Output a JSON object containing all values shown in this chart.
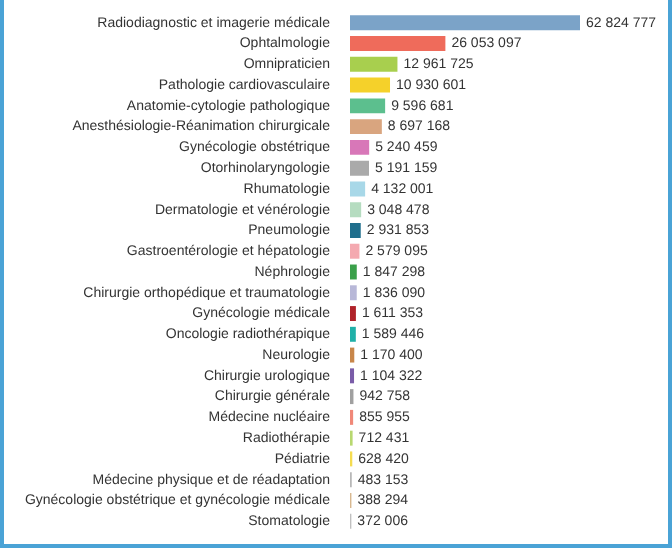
{
  "chart_data": {
    "type": "bar",
    "orientation": "horizontal",
    "categories": [
      "Radiodiagnostic et imagerie médicale",
      "Ophtalmologie",
      "Omnipraticien",
      "Pathologie cardiovasculaire",
      "Anatomie-cytologie pathologique",
      "Anesthésiologie-Réanimation chirurgicale",
      "Gynécologie obstétrique",
      "Otorhinolaryngologie",
      "Rhumatologie",
      "Dermatologie et vénérologie",
      "Pneumologie",
      "Gastroentérologie et hépatologie",
      "Néphrologie",
      "Chirurgie orthopédique et traumatologie",
      "Gynécologie médicale",
      "Oncologie radiothérapique",
      "Neurologie",
      "Chirurgie urologique",
      "Chirurgie générale",
      "Médecine nucléaire",
      "Radiothérapie",
      "Pédiatrie",
      "Médecine physique et de réadaptation",
      "Gynécologie obstétrique et gynécologie médicale",
      "Stomatologie"
    ],
    "values": [
      62824777,
      26053097,
      12961725,
      10930601,
      9596681,
      8697168,
      5240459,
      5191159,
      4132001,
      3048478,
      2931853,
      2579095,
      1847298,
      1836090,
      1611353,
      1589446,
      1170400,
      1104322,
      942758,
      855955,
      712431,
      628420,
      483153,
      388294,
      372006
    ],
    "value_labels": [
      "62 824 777",
      "26 053 097",
      "12 961 725",
      "10 930 601",
      "9 596 681",
      "8 697 168",
      "5 240 459",
      "5 191 159",
      "4 132 001",
      "3 048 478",
      "2 931 853",
      "2 579 095",
      "1 847 298",
      "1 836 090",
      "1 611 353",
      "1 589 446",
      "1 170 400",
      "1 104 322",
      "942 758",
      "855 955",
      "712 431",
      "628 420",
      "483 153",
      "388 294",
      "372 006"
    ],
    "colors": [
      "#7ba3c8",
      "#ef6b5b",
      "#a8cf4e",
      "#f5d12a",
      "#5cbf8e",
      "#d9a57f",
      "#d877b8",
      "#aaaaaa",
      "#a8d8e8",
      "#b5dcc0",
      "#1f6e8c",
      "#f4a9b0",
      "#3aa04a",
      "#b8b8d8",
      "#b0232a",
      "#20b0a8",
      "#c8864a",
      "#7a5ca8",
      "#a0a0a0",
      "#f08878",
      "#b8d870",
      "#f5dc50",
      "#b8b8b8",
      "#d8b890",
      "#c0c0c0"
    ],
    "legend": false
  }
}
